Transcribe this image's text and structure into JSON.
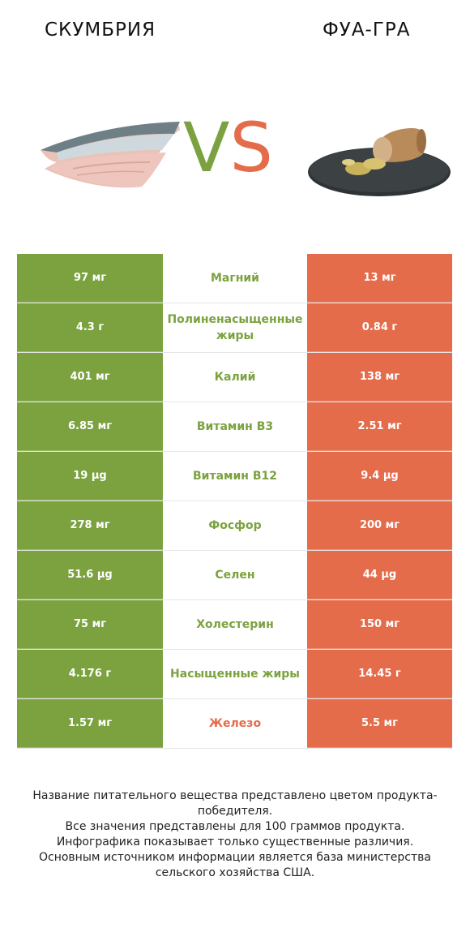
{
  "header": {
    "left_title": "СКУМБРИЯ",
    "right_title": "ФУА-ГРА",
    "vs_v": "V",
    "vs_s": "S"
  },
  "colors": {
    "left_accent": "#7ba23f",
    "right_accent": "#e46c4b"
  },
  "rows": [
    {
      "left": "97 мг",
      "name": "Магний",
      "right": "13 мг",
      "winner": "left"
    },
    {
      "left": "4.3 г",
      "name": "Полиненасыщенные жиры",
      "right": "0.84 г",
      "winner": "left"
    },
    {
      "left": "401 мг",
      "name": "Калий",
      "right": "138 мг",
      "winner": "left"
    },
    {
      "left": "6.85 мг",
      "name": "Витамин B3",
      "right": "2.51 мг",
      "winner": "left"
    },
    {
      "left": "19 µg",
      "name": "Витамин B12",
      "right": "9.4 µg",
      "winner": "left"
    },
    {
      "left": "278 мг",
      "name": "Фосфор",
      "right": "200 мг",
      "winner": "left"
    },
    {
      "left": "51.6 µg",
      "name": "Селен",
      "right": "44 µg",
      "winner": "left"
    },
    {
      "left": "75 мг",
      "name": "Холестерин",
      "right": "150 мг",
      "winner": "left"
    },
    {
      "left": "4.176 г",
      "name": "Насыщенные жиры",
      "right": "14.45 г",
      "winner": "left"
    },
    {
      "left": "1.57 мг",
      "name": "Железо",
      "right": "5.5 мг",
      "winner": "right"
    }
  ],
  "footer": {
    "line1": "Название питательного вещества представлено цветом продукта-победителя.",
    "line2": "Все значения представлены для 100 граммов продукта.",
    "line3": "Инфографика показывает только существенные различия.",
    "line4": "Основным источником информации является база министерства сельского хозяйства США."
  }
}
